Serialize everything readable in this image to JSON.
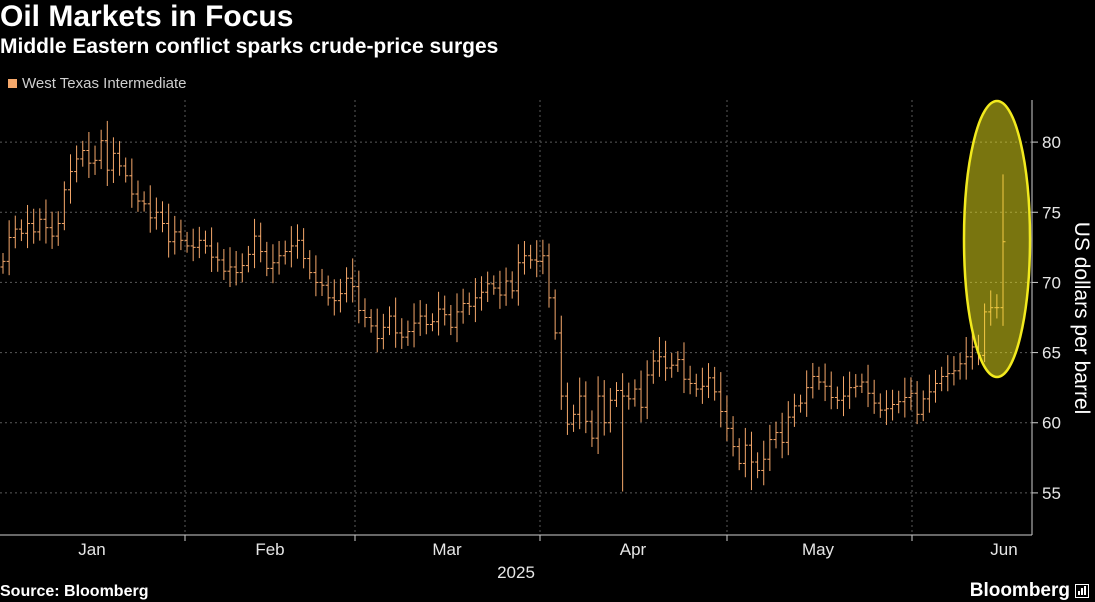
{
  "title": "Oil Markets in Focus",
  "subtitle": "Middle Eastern conflict sparks crude-price surges",
  "source": "Source: Bloomberg",
  "brand": "Bloomberg",
  "colors": {
    "background": "#000000",
    "series": "#f5a86b",
    "highlight": "#f2ea1e",
    "grid": "#5a5a5a"
  },
  "chart_data": {
    "type": "ohlc",
    "title": "Oil Markets in Focus",
    "subtitle": "Middle Eastern conflict sparks crude-price surges",
    "series_name": "West Texas Intermediate",
    "ylabel": "US dollars per barrel",
    "xlabel": "2025",
    "ylim": [
      52,
      83
    ],
    "yticks": [
      55,
      60,
      65,
      70,
      75,
      80
    ],
    "months": [
      "Jan",
      "Feb",
      "Mar",
      "Apr",
      "May",
      "Jun"
    ],
    "grid": true,
    "highlight_annotation": "ellipse around the final June price spike",
    "prices_close": [
      71.5,
      73.2,
      73.8,
      73.5,
      74.2,
      73.6,
      74.5,
      73.9,
      73.3,
      74.2,
      76.6,
      77.9,
      78.8,
      79.4,
      78.5,
      78.7,
      80.1,
      78.0,
      79.2,
      78.3,
      77.6,
      76.3,
      75.8,
      75.6,
      74.6,
      75.0,
      74.2,
      72.9,
      73.6,
      73.0,
      72.6,
      72.5,
      73.0,
      72.6,
      71.8,
      71.6,
      70.8,
      71.1,
      70.7,
      71.2,
      72.0,
      73.3,
      72.2,
      71.0,
      71.4,
      71.9,
      72.2,
      72.6,
      73.0,
      71.7,
      70.7,
      70.0,
      69.8,
      68.9,
      68.7,
      69.2,
      70.3,
      69.7,
      68.0,
      67.5,
      66.9,
      66.0,
      66.8,
      67.6,
      66.4,
      66.1,
      66.5,
      67.1,
      67.6,
      67.0,
      67.2,
      68.1,
      67.7,
      66.8,
      67.9,
      68.5,
      68.3,
      68.9,
      69.3,
      69.9,
      69.6,
      69.1,
      70.1,
      69.4,
      71.4,
      71.9,
      71.6,
      71.5,
      71.9,
      68.9,
      66.4,
      61.9,
      59.9,
      60.6,
      61.9,
      60.1,
      58.9,
      61.9,
      60.0,
      61.6,
      62.3,
      61.9,
      61.7,
      62.4,
      61.1,
      63.4,
      64.4,
      64.7,
      63.9,
      64.1,
      64.5,
      63.1,
      62.8,
      62.4,
      62.6,
      63.2,
      62.2,
      60.8,
      59.6,
      58.3,
      57.1,
      58.4,
      57.2,
      56.6,
      57.4,
      58.8,
      59.3,
      58.6,
      60.4,
      61.2,
      61.4,
      62.5,
      63.3,
      62.9,
      62.6,
      61.8,
      61.6,
      61.9,
      62.5,
      62.6,
      62.9,
      62.1,
      61.4,
      60.9,
      61.0,
      61.3,
      61.5,
      61.8,
      62.1,
      60.6,
      61.7,
      62.2,
      62.8,
      63.3,
      63.5,
      63.7,
      64.2,
      64.7,
      65.4,
      64.8,
      67.9,
      68.2,
      68.2,
      72.9
    ]
  }
}
